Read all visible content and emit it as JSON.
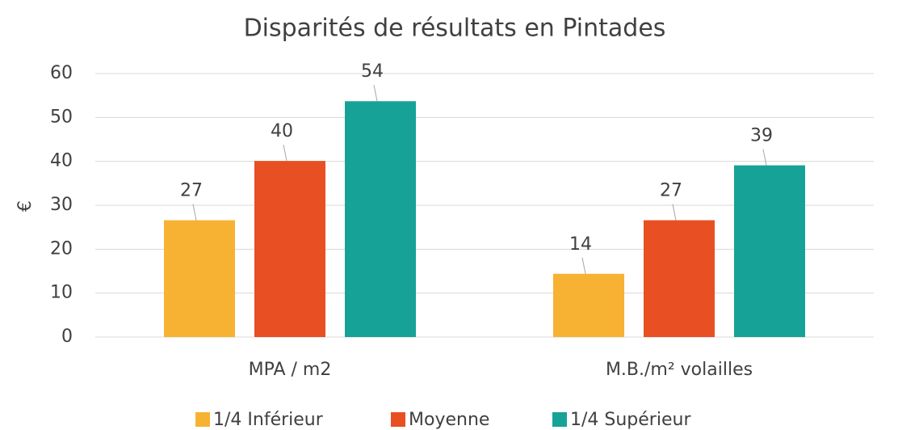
{
  "chart_data": {
    "type": "bar",
    "title": "Disparités de résultats en Pintades",
    "y_label": "€",
    "categories": [
      "MPA / m2",
      "M.B./m² volailles"
    ],
    "series": [
      {
        "name": "1/4 Inférieur",
        "color": "#f7b233",
        "values": [
          26.6,
          14.4
        ],
        "value_labels": [
          "27",
          "14"
        ]
      },
      {
        "name": "Moyenne",
        "color": "#e84f22",
        "values": [
          40.1,
          26.6
        ],
        "value_labels": [
          "40",
          "27"
        ]
      },
      {
        "name": "1/4 Supérieur",
        "color": "#17a297",
        "values": [
          53.7,
          39.1
        ],
        "value_labels": [
          "54",
          "39"
        ]
      }
    ],
    "ylim": [
      0,
      60
    ],
    "yticks": [
      0,
      10,
      20,
      30,
      40,
      50,
      60
    ],
    "grid": true,
    "legend": "bottom"
  }
}
